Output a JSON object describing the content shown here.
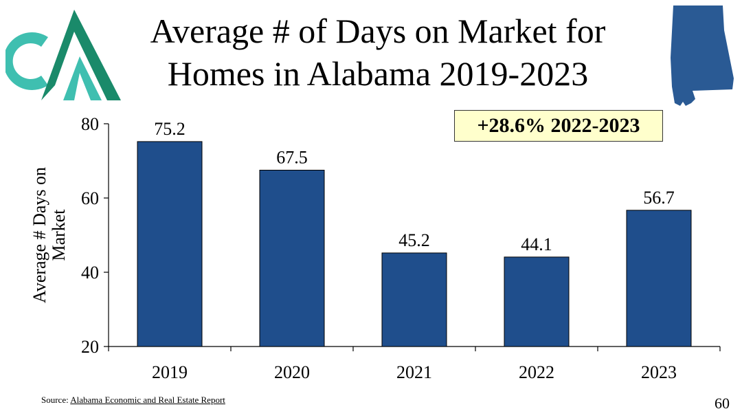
{
  "slide": {
    "title_line1": "Average # of Days on Market for",
    "title_line2": "Homes in Alabama 2019-2023",
    "callout": "+28.6% 2022-2023",
    "source_label": "Source:",
    "source_link": "Alabama Economic and Real Estate Report",
    "page_number": "60"
  },
  "colors": {
    "bar": "#1f4e8c",
    "logo_dark": "#1a8a6a",
    "logo_light": "#3fbfb0",
    "state": "#2a5a94",
    "callout_bg": "#ffffcc"
  },
  "chart_data": {
    "type": "bar",
    "title": "Average # of Days on Market for Homes in Alabama 2019-2023",
    "categories": [
      "2019",
      "2020",
      "2021",
      "2022",
      "2023"
    ],
    "values": [
      75.2,
      67.5,
      45.2,
      44.1,
      56.7
    ],
    "value_labels": [
      "75.2",
      "67.5",
      "45.2",
      "44.1",
      "56.7"
    ],
    "ylabel": "Average # Days on Market",
    "ylabel_line1": "Average # Days  on",
    "ylabel_line2": "Market",
    "xlabel": "",
    "ylim": [
      20,
      80
    ],
    "yticks": [
      20,
      40,
      60,
      80
    ],
    "grid": false,
    "legend": "none"
  }
}
